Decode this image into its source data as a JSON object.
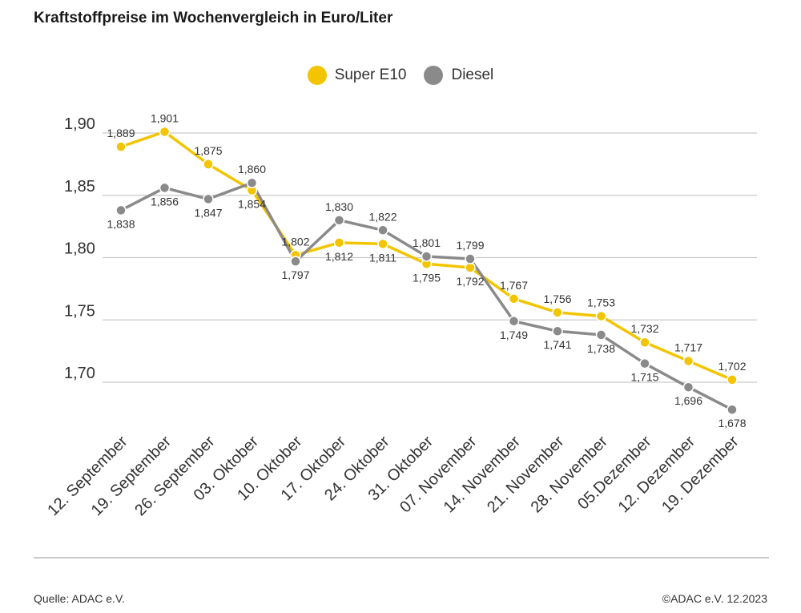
{
  "title": "Kraftstoffpreise im Wochenvergleich in Euro/Liter",
  "source": "Quelle: ADAC e.V.",
  "copyright": "©ADAC e.V. 12.2023",
  "colors": {
    "super": "#f2c500",
    "diesel": "#8a8a8a",
    "grid": "#c9c9c9"
  },
  "chart_data": {
    "type": "line",
    "title": "Kraftstoffpreise im Wochenvergleich in Euro/Liter",
    "xlabel": "",
    "ylabel": "",
    "ylim": [
      1.65,
      1.9
    ],
    "yticks": [
      "1,70",
      "1,75",
      "1,80",
      "1,85",
      "1,90"
    ],
    "grid": true,
    "legend": "top-center",
    "categories": [
      "12. September",
      "19. September",
      "26. September",
      "03. Oktober",
      "10. Oktober",
      "17. Oktober",
      "24. Oktober",
      "31. Oktober",
      "07. November",
      "14. November",
      "21. November",
      "28. November",
      "05.Dezember",
      "12. Dezember",
      "19. Dezember"
    ],
    "series": [
      {
        "name": "Super E10",
        "values": [
          1.889,
          1.901,
          1.875,
          1.854,
          1.802,
          1.812,
          1.811,
          1.795,
          1.792,
          1.767,
          1.756,
          1.753,
          1.732,
          1.717,
          1.702
        ],
        "labels": [
          "1,889",
          "1,901",
          "1,875",
          "1,854",
          "1,802",
          "1,812",
          "1,811",
          "1,795",
          "1,792",
          "1,767",
          "1,756",
          "1,753",
          "1,732",
          "1,717",
          "1,702"
        ]
      },
      {
        "name": "Diesel",
        "values": [
          1.838,
          1.856,
          1.847,
          1.86,
          1.797,
          1.83,
          1.822,
          1.801,
          1.799,
          1.749,
          1.741,
          1.738,
          1.715,
          1.696,
          1.678
        ],
        "labels": [
          "1,838",
          "1,856",
          "1,847",
          "1,860",
          "1,797",
          "1,830",
          "1,822",
          "1,801",
          "1,799",
          "1,749",
          "1,741",
          "1,738",
          "1,715",
          "1,696",
          "1,678"
        ]
      }
    ]
  }
}
